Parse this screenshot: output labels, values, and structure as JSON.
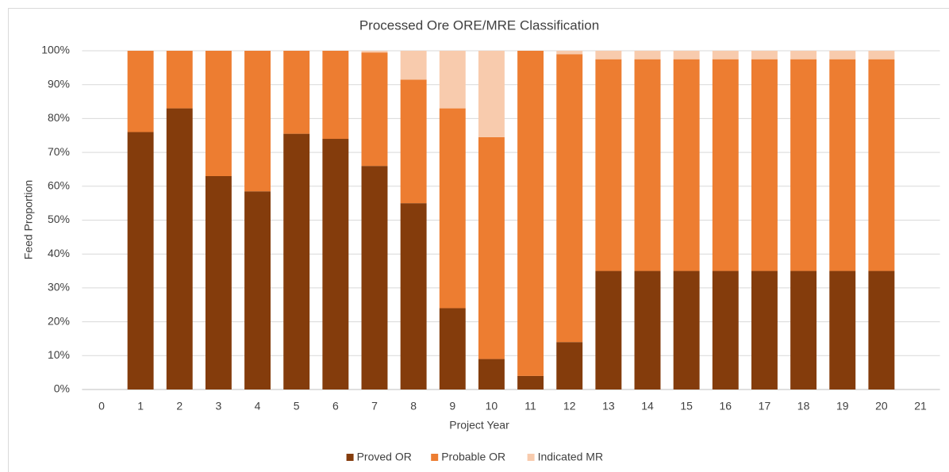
{
  "chart_data": {
    "type": "stacked_bar",
    "title": "Processed Ore ORE/MRE Classification",
    "x_label": "Project Year",
    "y_label": "Feed Proportion",
    "categories": [
      "0",
      "1",
      "2",
      "3",
      "4",
      "5",
      "6",
      "7",
      "8",
      "9",
      "10",
      "11",
      "12",
      "13",
      "14",
      "15",
      "16",
      "17",
      "18",
      "19",
      "20",
      "21"
    ],
    "series": [
      {
        "name": "Proved OR",
        "color": "#843c0c",
        "values": [
          null,
          76,
          83,
          63,
          58.5,
          75.5,
          74,
          66,
          55,
          24,
          9,
          4,
          14,
          35,
          35,
          35,
          35,
          35,
          35,
          35,
          35,
          null
        ]
      },
      {
        "name": "Probable OR",
        "color": "#ed7d31",
        "values": [
          null,
          24,
          17,
          37,
          41.5,
          24.5,
          26,
          33.5,
          36.5,
          59,
          65.5,
          96,
          85,
          62.5,
          62.5,
          62.5,
          62.5,
          62.5,
          62.5,
          62.5,
          62.5,
          null
        ]
      },
      {
        "name": "Indicated MR",
        "color": "#f8cbad",
        "values": [
          null,
          0,
          0,
          0,
          0,
          0,
          0,
          0.5,
          8.5,
          17,
          25.5,
          0,
          1,
          2.5,
          2.5,
          2.5,
          2.5,
          2.5,
          2.5,
          2.5,
          2.5,
          null
        ]
      }
    ],
    "ylim": [
      0,
      100
    ],
    "yticks": [
      {
        "value": 0,
        "label": "0%"
      },
      {
        "value": 10,
        "label": "10%"
      },
      {
        "value": 20,
        "label": "20%"
      },
      {
        "value": 30,
        "label": "30%"
      },
      {
        "value": 40,
        "label": "40%"
      },
      {
        "value": 50,
        "label": "50%"
      },
      {
        "value": 60,
        "label": "60%"
      },
      {
        "value": 70,
        "label": "70%"
      },
      {
        "value": 80,
        "label": "80%"
      },
      {
        "value": 90,
        "label": "90%"
      },
      {
        "value": 100,
        "label": "100%"
      }
    ],
    "grid": true,
    "legend": "bottom"
  }
}
